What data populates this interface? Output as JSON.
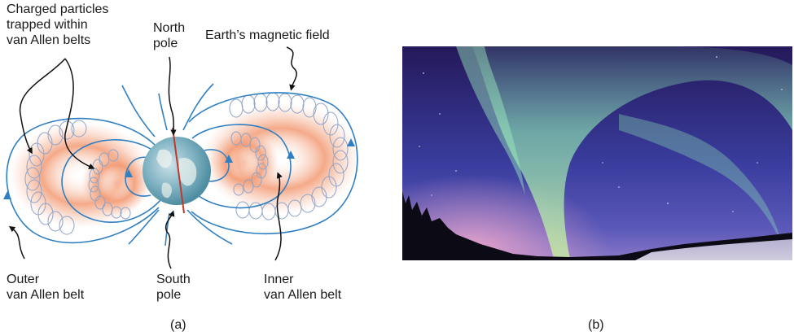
{
  "panel_a": {
    "labels": {
      "charged_particles": "Charged particles\ntrapped within\nvan Allen belts",
      "north_pole": "North\npole",
      "magnetic_field": "Earth’s magnetic field",
      "outer_belt": "Outer\nvan Allen belt",
      "south_pole": "South\npole",
      "inner_belt": "Inner\nvan Allen belt"
    },
    "caption": "(a)",
    "colors": {
      "field_line": "#2f7fc1",
      "belt": "#f08a5d",
      "earth": "#6fa9b8",
      "axis": "#c0392b"
    }
  },
  "panel_b": {
    "caption": "(b)",
    "colors": {
      "sky_top": "#2a1f66",
      "sky_mid": "#3b3fa0",
      "aurora": "#7ee0a8",
      "horizon_glow": "#e0a0c8"
    }
  }
}
